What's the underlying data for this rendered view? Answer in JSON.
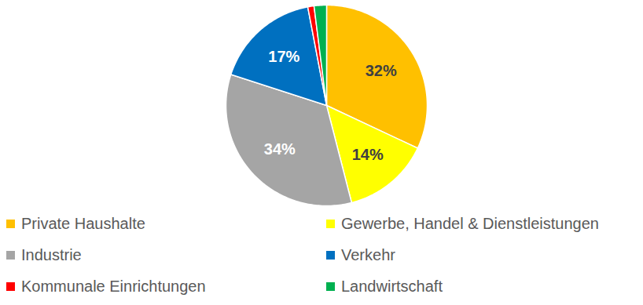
{
  "chart_data": {
    "type": "pie",
    "categories": [
      "Private Haushalte",
      "Gewerbe, Handel & Dienstleistungen",
      "Industrie",
      "Verkehr",
      "Kommunale Einrichtungen",
      "Landwirtschaft"
    ],
    "values": [
      32,
      14,
      34,
      17,
      1,
      2
    ],
    "colors": [
      "#FFC000",
      "#FFFF00",
      "#A5A5A5",
      "#0070C0",
      "#FF0000",
      "#00B050"
    ],
    "data_labels": true,
    "value_labels": [
      "32%",
      "14%",
      "34%",
      "17%",
      null,
      null
    ],
    "legend": "bottom"
  }
}
